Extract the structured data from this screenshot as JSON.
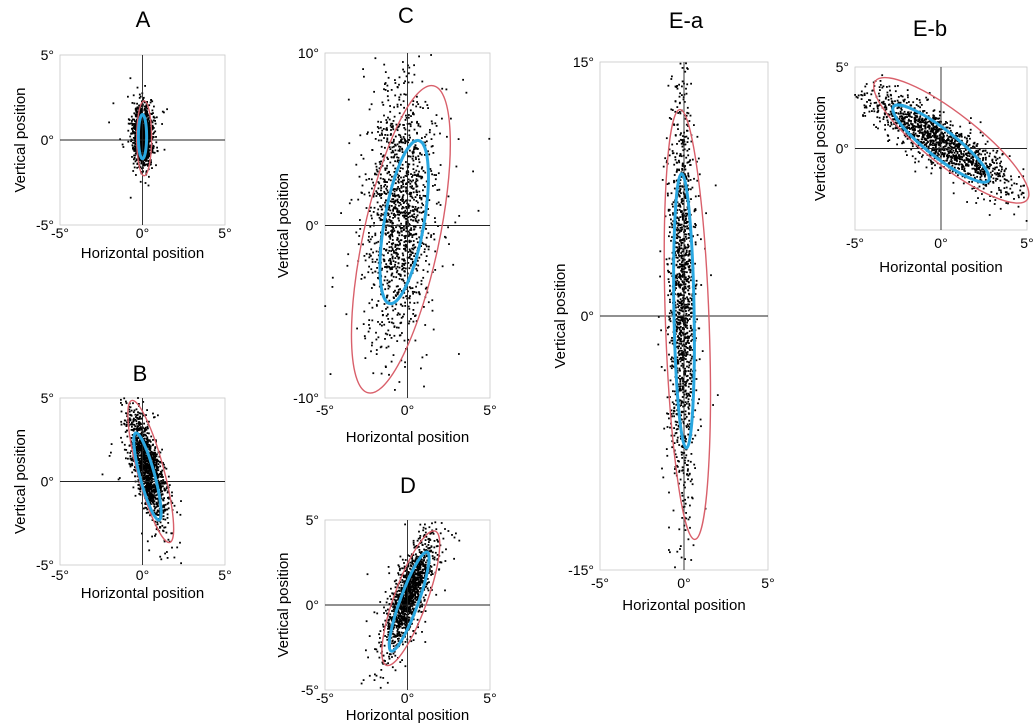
{
  "chart_data": [
    {
      "type": "scatter",
      "title": "A",
      "xlabel": "Horizontal position",
      "ylabel": "Vertical position",
      "xlim": [
        -5,
        5
      ],
      "ylim": [
        -5,
        5
      ],
      "x_tick_labels": [
        "-5°",
        "0°",
        "5°"
      ],
      "y_tick_labels": [
        "5°",
        "0°",
        "-5°"
      ],
      "crosshair_at": [
        0,
        0
      ],
      "point_cloud": {
        "center": [
          0,
          0.3
        ],
        "spread": [
          0.28,
          0.85
        ],
        "rotation_deg": 0
      },
      "ellipses": [
        {
          "name": "",
          "color": "#d9606b",
          "center": [
            0.1,
            0.1
          ],
          "semi_axes": [
            0.45,
            2.2
          ],
          "rotation_deg": 0
        },
        {
          "name": "",
          "color": "#2aa7e0",
          "center": [
            0.0,
            0.2
          ],
          "semi_axes": [
            0.25,
            1.3
          ],
          "rotation_deg": 0
        }
      ]
    },
    {
      "type": "scatter",
      "title": "B",
      "xlabel": "Horizontal position",
      "ylabel": "Vertical position",
      "xlim": [
        -5,
        5
      ],
      "ylim": [
        -5,
        5
      ],
      "x_tick_labels": [
        "-5°",
        "0°",
        "5°"
      ],
      "y_tick_labels": [
        "5°",
        "0°",
        "-5°"
      ],
      "crosshair_at": [
        0,
        0
      ],
      "point_cloud": {
        "center": [
          0.3,
          0.8
        ],
        "spread": [
          0.4,
          1.7
        ],
        "rotation_deg": 15
      },
      "ellipses": [
        {
          "name": "",
          "color": "#d9606b",
          "center": [
            0.5,
            0.6
          ],
          "semi_axes": [
            0.8,
            4.4
          ],
          "rotation_deg": 15
        },
        {
          "name": "",
          "color": "#2aa7e0",
          "center": [
            0.3,
            0.3
          ],
          "semi_axes": [
            0.45,
            2.7
          ],
          "rotation_deg": 15
        }
      ]
    },
    {
      "type": "scatter",
      "title": "C",
      "xlabel": "Horizontal position",
      "ylabel": "Vertical position",
      "xlim": [
        -5,
        5
      ],
      "ylim": [
        -10,
        10
      ],
      "x_tick_labels": [
        "-5°",
        "0°",
        "5°"
      ],
      "y_tick_labels": [
        "10°",
        "0°",
        "-10°"
      ],
      "crosshair_at": [
        0,
        0
      ],
      "point_cloud": {
        "center": [
          -0.5,
          0.8
        ],
        "spread": [
          1.0,
          3.8
        ],
        "rotation_deg": -3
      },
      "ellipses": [
        {
          "name": "",
          "color": "#d9606b",
          "center": [
            -0.4,
            -0.8
          ],
          "semi_axes": [
            2.3,
            9.1
          ],
          "rotation_deg": -12
        },
        {
          "name": "",
          "color": "#2aa7e0",
          "center": [
            -0.2,
            0.2
          ],
          "semi_axes": [
            1.2,
            4.8
          ],
          "rotation_deg": -10
        }
      ]
    },
    {
      "type": "scatter",
      "title": "D",
      "xlabel": "Horizontal position",
      "ylabel": "Vertical position",
      "xlim": [
        -5,
        5
      ],
      "ylim": [
        -5,
        5
      ],
      "x_tick_labels": [
        "-5°",
        "0°",
        "5°"
      ],
      "y_tick_labels": [
        "5°",
        "0°",
        "-5°"
      ],
      "crosshair_at": [
        0,
        0
      ],
      "point_cloud": {
        "center": [
          0.1,
          0.6
        ],
        "spread": [
          0.45,
          1.8
        ],
        "rotation_deg": -20
      },
      "ellipses": [
        {
          "name": "",
          "color": "#d9606b",
          "center": [
            0.2,
            0.4
          ],
          "semi_axes": [
            1.0,
            4.2
          ],
          "rotation_deg": -20
        },
        {
          "name": "",
          "color": "#2aa7e0",
          "center": [
            0.1,
            0.2
          ],
          "semi_axes": [
            0.55,
            3.1
          ],
          "rotation_deg": -20
        }
      ]
    },
    {
      "type": "scatter",
      "title": "E-a",
      "xlabel": "Horizontal position",
      "ylabel": "Vertical position",
      "xlim": [
        -5,
        5
      ],
      "ylim": [
        -15,
        15
      ],
      "x_tick_labels": [
        "-5°",
        "0°",
        "5°"
      ],
      "y_tick_labels": [
        "15°",
        "0°",
        "-15°"
      ],
      "crosshair_at": [
        0,
        0
      ],
      "point_cloud": {
        "center": [
          -0.1,
          1.0
        ],
        "spread": [
          0.4,
          6.0
        ],
        "rotation_deg": 0
      },
      "ellipses": [
        {
          "name": "",
          "color": "#d9606b",
          "center": [
            0.2,
            -0.5
          ],
          "semi_axes": [
            1.3,
            12.7
          ],
          "rotation_deg": 2
        },
        {
          "name": "",
          "color": "#2aa7e0",
          "center": [
            0.0,
            0.3
          ],
          "semi_axes": [
            0.6,
            8.1
          ],
          "rotation_deg": 1
        }
      ]
    },
    {
      "type": "scatter",
      "title": "E-b",
      "xlabel": "Horizontal position",
      "ylabel": "Vertical position",
      "xlim": [
        -5,
        5
      ],
      "ylim": [
        -5,
        5
      ],
      "x_tick_labels": [
        "-5°",
        "0°",
        "5°"
      ],
      "y_tick_labels": [
        "5°",
        "0°"
      ],
      "crosshair_at": [
        0,
        0
      ],
      "point_cloud": {
        "center": [
          0.0,
          0.4
        ],
        "spread": [
          2.6,
          0.65
        ],
        "rotation_deg": -35
      },
      "ellipses": [
        {
          "name": "",
          "color": "#d9606b",
          "center": [
            0.6,
            0.5
          ],
          "semi_axes": [
            5.6,
            1.6
          ],
          "rotation_deg": -38
        },
        {
          "name": "",
          "color": "#2aa7e0",
          "center": [
            0.0,
            0.3
          ],
          "semi_axes": [
            3.5,
            0.85
          ],
          "rotation_deg": -38
        }
      ]
    }
  ]
}
